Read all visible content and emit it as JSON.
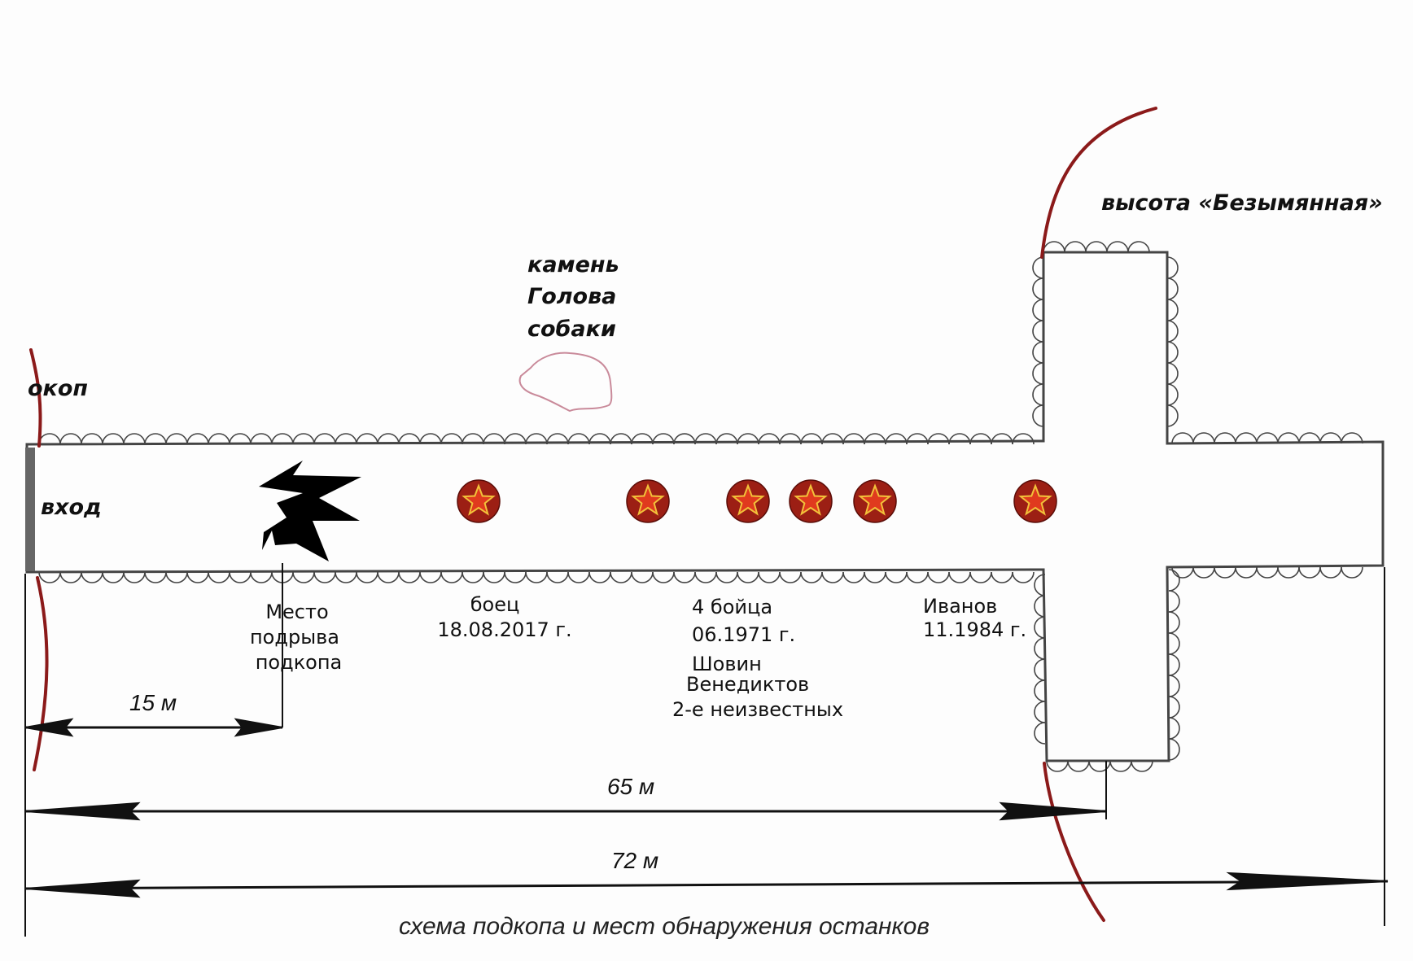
{
  "labels": {
    "trench": "окоп",
    "entrance": "вход",
    "stone": [
      "камень",
      "Голова",
      "собаки"
    ],
    "height": "высота «Безымянная»",
    "blast_site": [
      "Место",
      "подрыва",
      "подкопа"
    ],
    "find_1": [
      "боец",
      "18.08.2017 г."
    ],
    "find_2": [
      "4 бойца",
      "06.1971 г.",
      "Шовин",
      "Венедиктов",
      "2-е неизвестных"
    ],
    "find_3": [
      "Иванов",
      "11.1984 г."
    ]
  },
  "dimensions": {
    "d15": "15 м",
    "d65": "65 м",
    "d72": "72 м"
  },
  "caption": "схема подкопа и мест обнаружения останков",
  "colors": {
    "trench_line": "#8b1a1a",
    "star_badge": "#9c1f14",
    "star": "#e03a1e",
    "dog_sketch": "#c98a9a"
  },
  "icons": {
    "burial_marker": "red-star-badge",
    "blast": "explosion-icon",
    "stone": "dog-head-sketch"
  }
}
